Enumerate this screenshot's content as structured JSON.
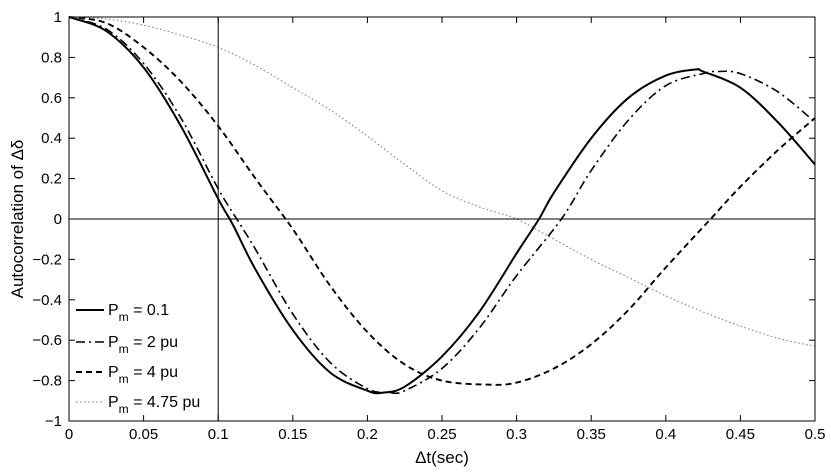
{
  "chart_data": {
    "type": "line",
    "xlabel": "Δt(sec)",
    "ylabel": "Autocorrelation of Δδ",
    "xlim": [
      0,
      0.5
    ],
    "ylim": [
      -1,
      1
    ],
    "x_ticks": [
      0,
      0.05,
      0.1,
      0.15,
      0.2,
      0.25,
      0.3,
      0.35,
      0.4,
      0.45,
      0.5
    ],
    "x_tick_labels": [
      "0",
      "0.05",
      "0.1",
      "0.15",
      "0.2",
      "0.25",
      "0.3",
      "0.35",
      "0.4",
      "0.45",
      "0.5"
    ],
    "y_ticks": [
      -1,
      -0.8,
      -0.6,
      -0.4,
      -0.2,
      0,
      0.2,
      0.4,
      0.6,
      0.8,
      1
    ],
    "y_tick_labels": [
      "−1",
      "−0.8",
      "−0.6",
      "−0.4",
      "−0.2",
      "0",
      "0.2",
      "0.4",
      "0.6",
      "0.8",
      "1"
    ],
    "grid": false,
    "reference_lines": {
      "vertical_x": 0.1,
      "horizontal_y": 0
    },
    "legend": {
      "placement": "bottom-left",
      "entries": [
        {
          "base": "P",
          "sub": "m",
          "rest": " = 0.1"
        },
        {
          "base": "P",
          "sub": "m",
          "rest": " = 2 pu"
        },
        {
          "base": "P",
          "sub": "m",
          "rest": " = 4 pu"
        },
        {
          "base": "P",
          "sub": "m",
          "rest": " = 4.75 pu"
        }
      ]
    },
    "series": [
      {
        "style": "solid",
        "x": [
          0,
          0.025,
          0.05,
          0.075,
          0.1,
          0.11,
          0.125,
          0.15,
          0.175,
          0.2,
          0.21,
          0.225,
          0.25,
          0.275,
          0.3,
          0.315,
          0.325,
          0.35,
          0.375,
          0.4,
          0.42,
          0.425,
          0.45,
          0.475,
          0.5
        ],
        "y": [
          1,
          0.93,
          0.75,
          0.46,
          0.1,
          -0.03,
          -0.25,
          -0.55,
          -0.76,
          -0.85,
          -0.86,
          -0.83,
          -0.68,
          -0.46,
          -0.17,
          0,
          0.13,
          0.4,
          0.6,
          0.71,
          0.74,
          0.73,
          0.65,
          0.48,
          0.27
        ]
      },
      {
        "style": "dashdot",
        "x": [
          0,
          0.025,
          0.05,
          0.075,
          0.1,
          0.115,
          0.125,
          0.15,
          0.175,
          0.2,
          0.215,
          0.225,
          0.25,
          0.275,
          0.3,
          0.33,
          0.35,
          0.375,
          0.4,
          0.425,
          0.435,
          0.45,
          0.475,
          0.5
        ],
        "y": [
          1,
          0.94,
          0.77,
          0.5,
          0.15,
          -0.03,
          -0.15,
          -0.47,
          -0.71,
          -0.84,
          -0.86,
          -0.85,
          -0.74,
          -0.54,
          -0.28,
          0,
          0.24,
          0.49,
          0.66,
          0.72,
          0.73,
          0.72,
          0.63,
          0.48
        ]
      },
      {
        "style": "dashed",
        "x": [
          0,
          0.025,
          0.05,
          0.075,
          0.1,
          0.125,
          0.15,
          0.175,
          0.2,
          0.225,
          0.25,
          0.28,
          0.3,
          0.325,
          0.35,
          0.375,
          0.4,
          0.43,
          0.45,
          0.475,
          0.5
        ],
        "y": [
          1,
          0.97,
          0.85,
          0.68,
          0.46,
          0.2,
          -0.05,
          -0.33,
          -0.56,
          -0.72,
          -0.8,
          -0.82,
          -0.81,
          -0.74,
          -0.62,
          -0.45,
          -0.24,
          0,
          0.16,
          0.34,
          0.5
        ]
      },
      {
        "style": "dotted",
        "x": [
          0,
          0.025,
          0.05,
          0.075,
          0.1,
          0.125,
          0.15,
          0.175,
          0.2,
          0.225,
          0.25,
          0.275,
          0.3,
          0.325,
          0.35,
          0.375,
          0.4,
          0.425,
          0.45,
          0.475,
          0.5
        ],
        "y": [
          1,
          0.99,
          0.96,
          0.91,
          0.85,
          0.76,
          0.65,
          0.54,
          0.41,
          0.27,
          0.14,
          0.06,
          0,
          -0.1,
          -0.2,
          -0.29,
          -0.38,
          -0.46,
          -0.53,
          -0.59,
          -0.63
        ]
      }
    ]
  }
}
